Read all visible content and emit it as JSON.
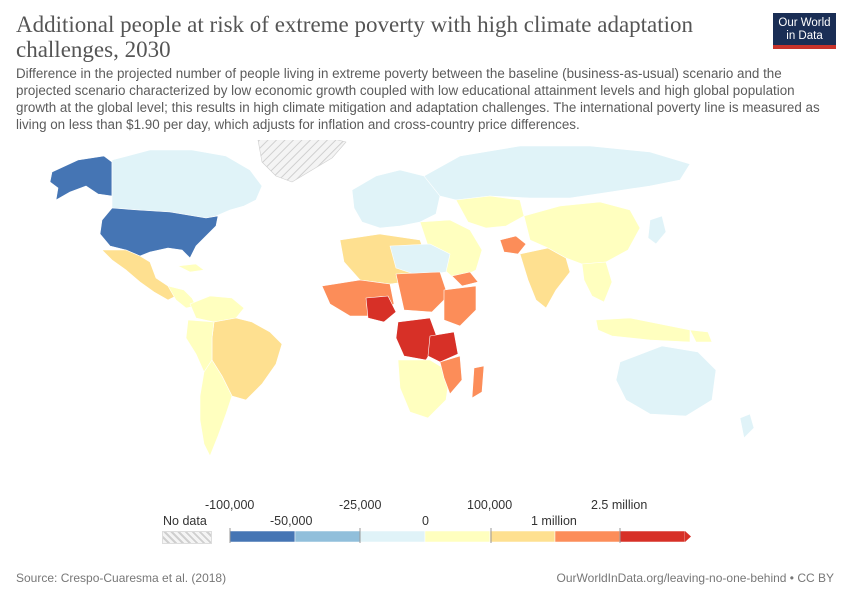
{
  "title": "Additional people at risk of extreme poverty with high climate adaptation challenges, 2030",
  "subtitle": "Difference in the projected number of people living in extreme poverty between the baseline (business-as-usual) scenario and the projected scenario characterized by low economic growth coupled with low educational attainment levels and high global population growth at the global level; this results in high climate mitigation and adaptation challenges. The international poverty line is measured as living on less than $1.90 per day, which adjusts for inflation and cross-country price differences.",
  "logo": {
    "line1": "Our World",
    "line2": "in Data"
  },
  "legend": {
    "no_data": "No data",
    "upper_labels": [
      "-100,000",
      "-25,000",
      "100,000",
      "2.5 million"
    ],
    "lower_labels": [
      "-50,000",
      "0",
      "1 million"
    ],
    "colors": [
      "#4575b4",
      "#91bfdb",
      "#e0f3f8",
      "#ffffbf",
      "#fee090",
      "#fc8d59",
      "#d73027"
    ]
  },
  "footer": {
    "source": "Source: Crespo-Cuaresma et al. (2018)",
    "url": "OurWorldInData.org/leaving-no-one-behind • CC BY"
  }
}
